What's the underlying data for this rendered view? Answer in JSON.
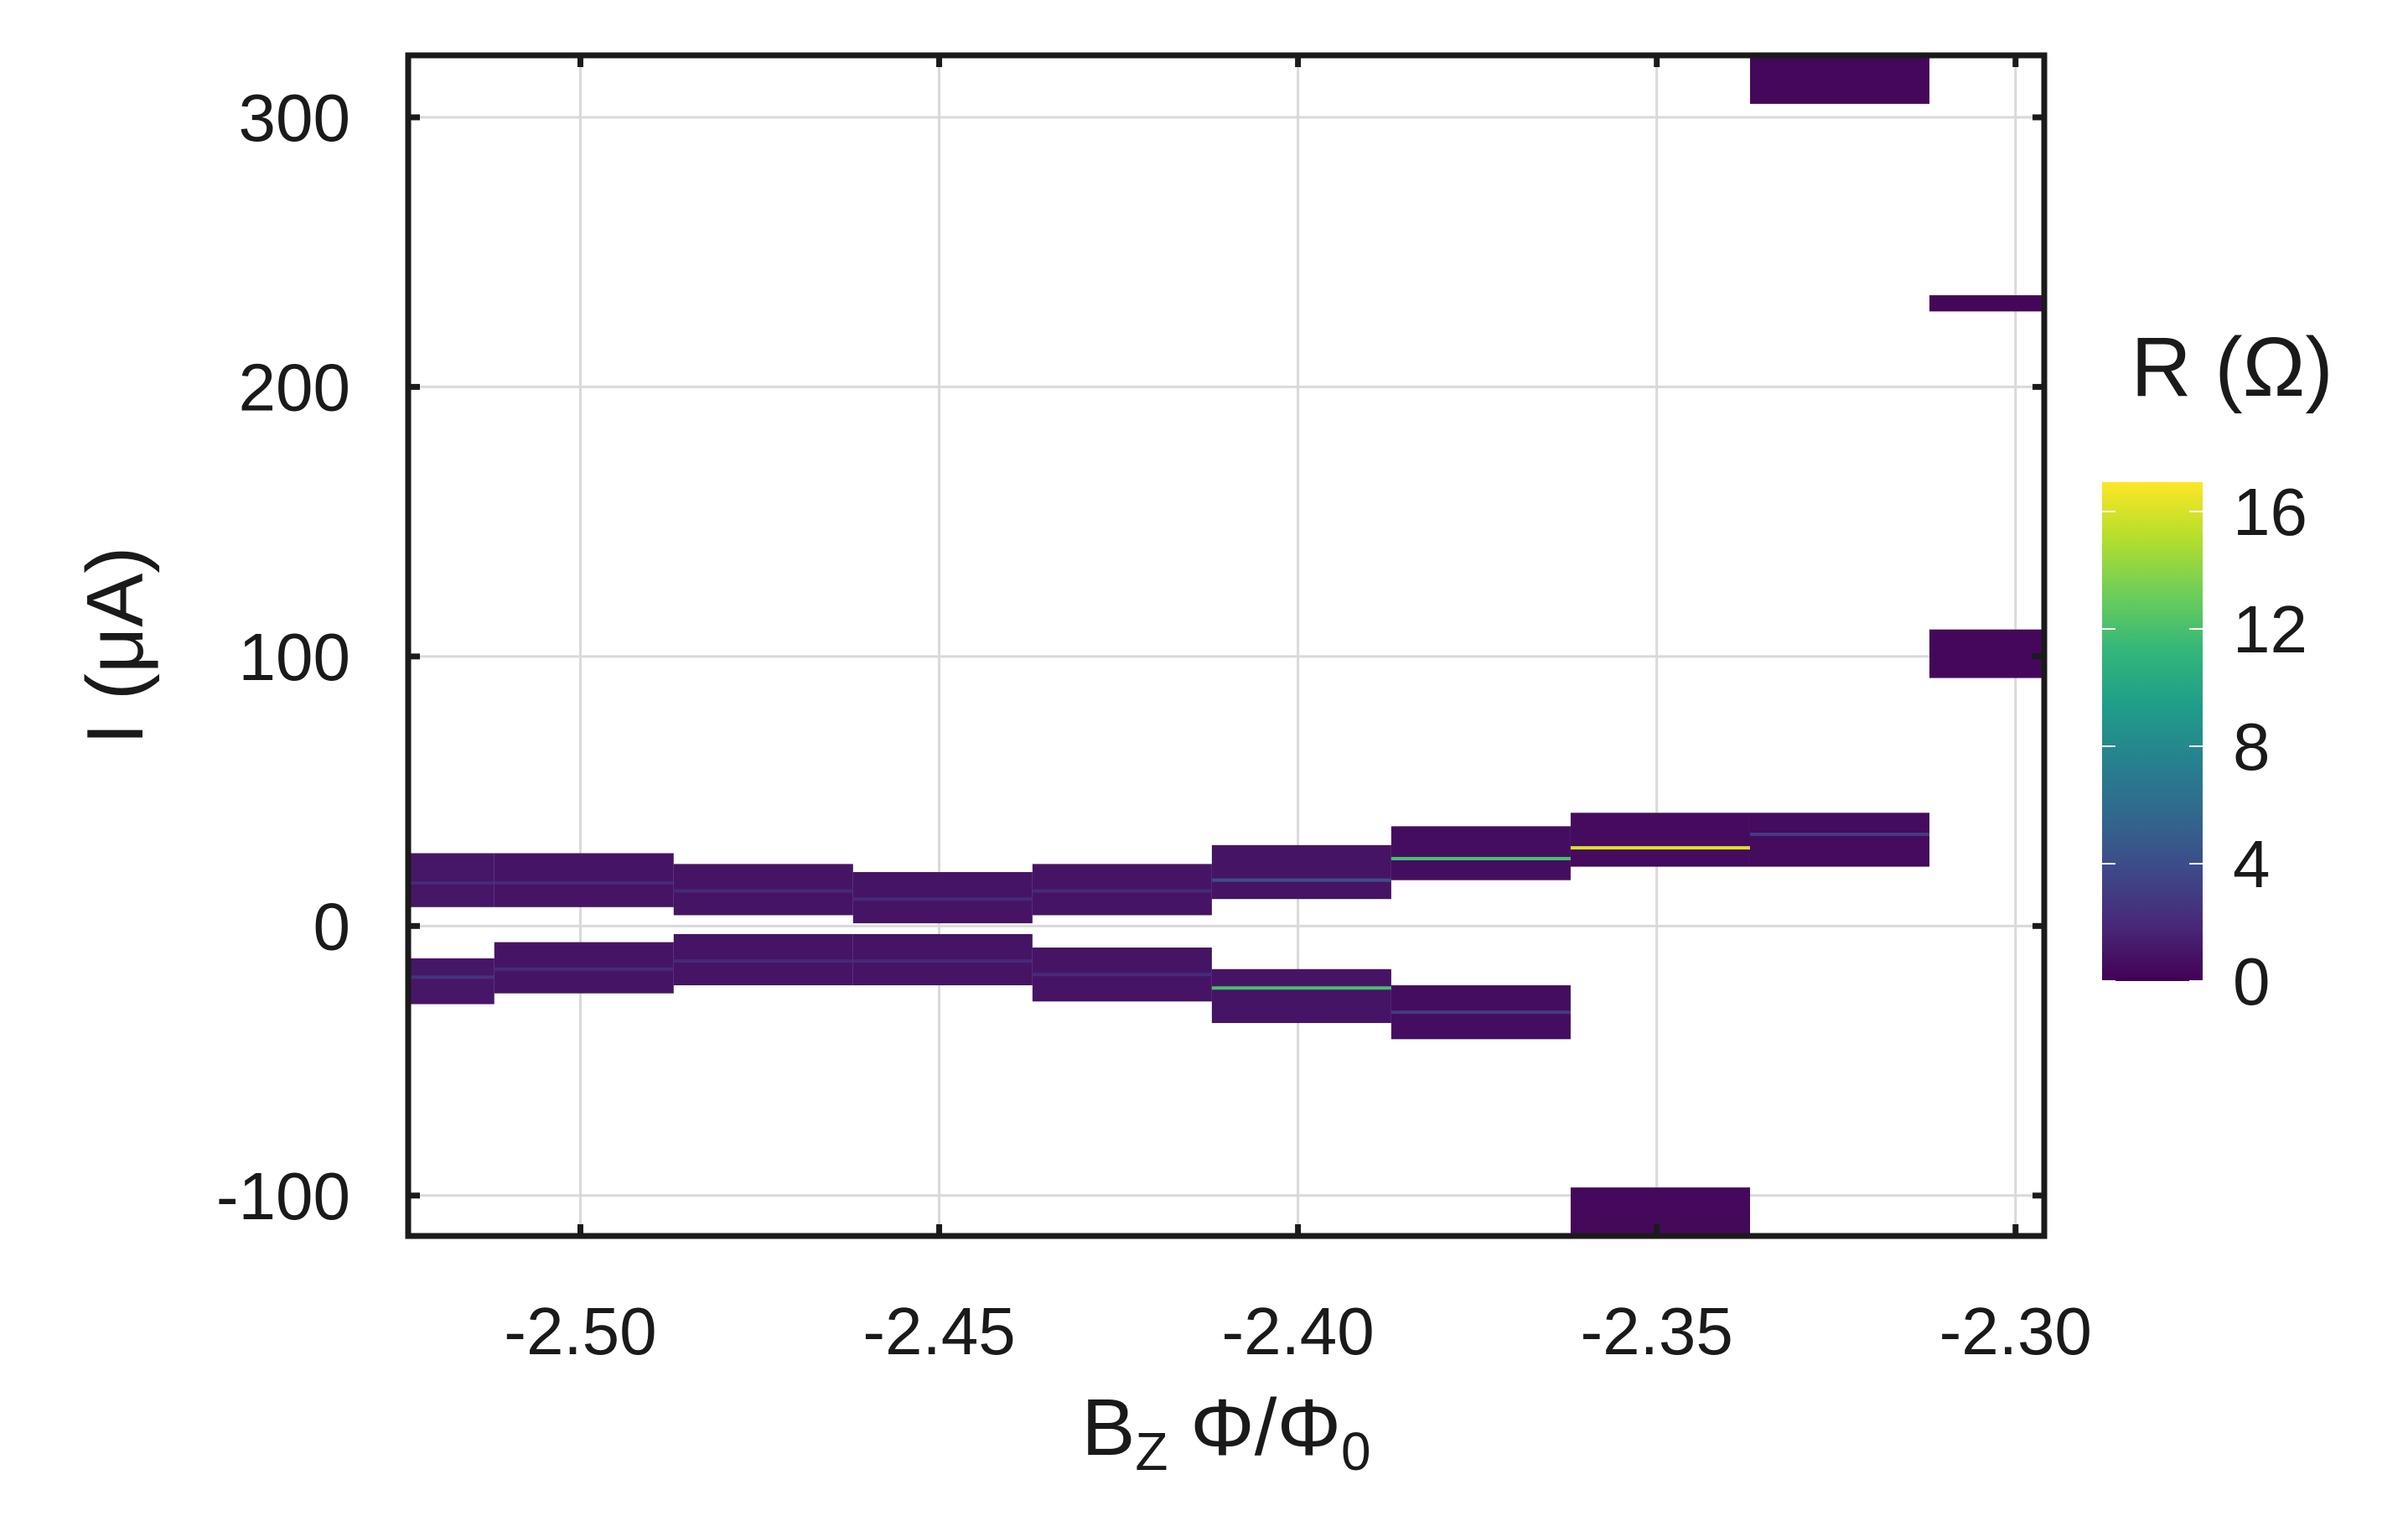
{
  "chart_data": {
    "type": "heatmap",
    "title": "",
    "xlabel": "B",
    "xlabel_sub": "Z",
    "xlabel_rest": " Φ/Φ",
    "xlabel_rest_sub": "0",
    "ylabel": "I (μA)",
    "xlim": [
      -2.524,
      -2.296
    ],
    "ylim": [
      -115,
      323
    ],
    "xticks": [
      -2.5,
      -2.45,
      -2.4,
      -2.35,
      -2.3
    ],
    "xtick_labels": [
      "-2.50",
      "-2.45",
      "-2.40",
      "-2.35",
      "-2.30"
    ],
    "yticks": [
      -100,
      0,
      100,
      200,
      300
    ],
    "ytick_labels": [
      "-100",
      "0",
      "100",
      "200",
      "300"
    ],
    "grid": true,
    "colorbar": {
      "label": "R (Ω)",
      "range": [
        0,
        17
      ],
      "ticks": [
        0,
        4,
        8,
        12,
        16
      ],
      "tick_labels": [
        "0",
        "4",
        "8",
        "12",
        "16"
      ],
      "colormap": [
        "#440154",
        "#482878",
        "#3e4989",
        "#31688e",
        "#26828e",
        "#1f9e89",
        "#35b779",
        "#6ece58",
        "#b5de2b",
        "#fde725"
      ]
    },
    "cells": [
      {
        "x0": -2.524,
        "x1": -2.512,
        "y0": -29,
        "y1": -12,
        "r": 1.0
      },
      {
        "x0": -2.524,
        "x1": -2.512,
        "y0": 7,
        "y1": 27,
        "r": 1.0
      },
      {
        "x0": -2.512,
        "x1": -2.487,
        "y0": -25,
        "y1": -6,
        "r": 0.9
      },
      {
        "x0": -2.512,
        "x1": -2.487,
        "y0": 7,
        "y1": 27,
        "r": 0.9
      },
      {
        "x0": -2.487,
        "x1": -2.462,
        "y0": -22,
        "y1": -3,
        "r": 0.9
      },
      {
        "x0": -2.487,
        "x1": -2.462,
        "y0": 4,
        "y1": 23,
        "r": 0.9
      },
      {
        "x0": -2.462,
        "x1": -2.437,
        "y0": -22,
        "y1": -3,
        "r": 0.9
      },
      {
        "x0": -2.462,
        "x1": -2.437,
        "y0": 1,
        "y1": 20,
        "r": 0.9
      },
      {
        "x0": -2.437,
        "x1": -2.412,
        "y0": -28,
        "y1": -8,
        "r": 0.9
      },
      {
        "x0": -2.437,
        "x1": -2.412,
        "y0": 4,
        "y1": 23,
        "r": 0.9
      },
      {
        "x0": -2.412,
        "x1": -2.387,
        "y0": -36,
        "y1": -16,
        "r": 0.9
      },
      {
        "x0": -2.412,
        "x1": -2.387,
        "y0": 10,
        "y1": 30,
        "r": 0.9
      },
      {
        "x0": -2.387,
        "x1": -2.362,
        "y0": -42,
        "y1": -22,
        "r": 0.6
      },
      {
        "x0": -2.387,
        "x1": -2.362,
        "y0": 17,
        "y1": 37,
        "r": 0.6
      },
      {
        "x0": -2.362,
        "x1": -2.337,
        "y0": 22,
        "y1": 42,
        "r": 0.5
      },
      {
        "x0": -2.362,
        "x1": -2.337,
        "y0": -115,
        "y1": -97,
        "r": 0.4
      },
      {
        "x0": -2.337,
        "x1": -2.312,
        "y0": 22,
        "y1": 42,
        "r": 0.5
      },
      {
        "x0": -2.337,
        "x1": -2.312,
        "y0": 305,
        "y1": 323,
        "r": 0.3
      },
      {
        "x0": -2.312,
        "x1": -2.296,
        "y0": 92,
        "y1": 110,
        "r": 0.3
      },
      {
        "x0": -2.312,
        "x1": -2.296,
        "y0": 228,
        "y1": 234,
        "r": 0.3
      }
    ],
    "ridges": [
      {
        "x0": -2.524,
        "x1": -2.512,
        "y": -19,
        "r": 2.5
      },
      {
        "x0": -2.524,
        "x1": -2.512,
        "y": 16,
        "r": 2.0
      },
      {
        "x0": -2.512,
        "x1": -2.487,
        "y": -16,
        "r": 2.0
      },
      {
        "x0": -2.512,
        "x1": -2.487,
        "y": 16,
        "r": 2.0
      },
      {
        "x0": -2.487,
        "x1": -2.462,
        "y": -13,
        "r": 2.0
      },
      {
        "x0": -2.487,
        "x1": -2.462,
        "y": 13,
        "r": 2.0
      },
      {
        "x0": -2.462,
        "x1": -2.437,
        "y": -13,
        "r": 2.0
      },
      {
        "x0": -2.462,
        "x1": -2.437,
        "y": 10,
        "r": 2.0
      },
      {
        "x0": -2.437,
        "x1": -2.412,
        "y": -18,
        "r": 2.0
      },
      {
        "x0": -2.437,
        "x1": -2.412,
        "y": 13,
        "r": 2.0
      },
      {
        "x0": -2.412,
        "x1": -2.387,
        "y": -23,
        "r": 12.0
      },
      {
        "x0": -2.412,
        "x1": -2.387,
        "y": 17,
        "r": 4.0
      },
      {
        "x0": -2.387,
        "x1": -2.362,
        "y": -32,
        "r": 3.0
      },
      {
        "x0": -2.387,
        "x1": -2.362,
        "y": 25,
        "r": 12.0
      },
      {
        "x0": -2.362,
        "x1": -2.337,
        "y": 29,
        "r": 16.0
      },
      {
        "x0": -2.337,
        "x1": -2.312,
        "y": 34,
        "r": 3.0
      }
    ]
  }
}
